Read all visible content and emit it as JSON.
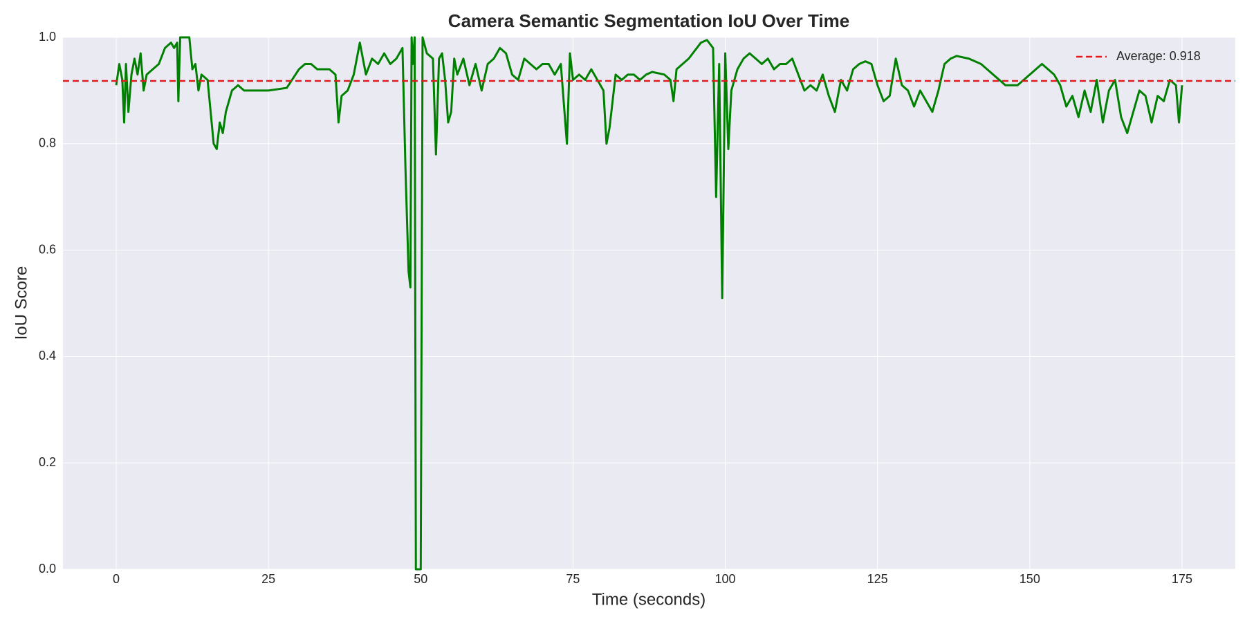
{
  "chart_data": {
    "type": "line",
    "title": "Camera Semantic Segmentation IoU Over Time",
    "x_label": "Time (seconds)",
    "y_label": "IoU Score",
    "xlim": [
      -8.75,
      183.75
    ],
    "xticks": [
      0,
      25,
      50,
      75,
      100,
      125,
      150,
      175
    ],
    "ylim": [
      0,
      1
    ],
    "yticks": [
      {
        "value": 0,
        "label": "0.0"
      },
      0.2,
      0.4,
      0.6,
      0.8,
      {
        "value": 1,
        "label": "1.0"
      }
    ],
    "grid": true,
    "legend": "upper right",
    "color": "#008000",
    "x": [
      0,
      0.5,
      1,
      1.3,
      1.6,
      2,
      2.5,
      3,
      3.5,
      4,
      4.5,
      5,
      6,
      7,
      8,
      9,
      9.5,
      10,
      10.2,
      10.5,
      12,
      12.5,
      13,
      13.5,
      14,
      15,
      15.5,
      16,
      16.5,
      17,
      17.5,
      18,
      19,
      20,
      21,
      22,
      25,
      28,
      30,
      31,
      32,
      33,
      35,
      36,
      36.5,
      37,
      38,
      39,
      40,
      41,
      42,
      43,
      44,
      45,
      46,
      47,
      47.5,
      48,
      48.3,
      48.5,
      48.7,
      49,
      49.2,
      50,
      50.3,
      51,
      52,
      52.5,
      53,
      53.5,
      54,
      54.5,
      55,
      55.5,
      56,
      57,
      58,
      59,
      60,
      61,
      62,
      63,
      64,
      65,
      66,
      67,
      68,
      69,
      70,
      71,
      72,
      73,
      74,
      74.5,
      75,
      76,
      77,
      78,
      79,
      80,
      80.5,
      81,
      82,
      83,
      84,
      85,
      86,
      87,
      88,
      90,
      91,
      91.5,
      92,
      94,
      96,
      97,
      98,
      98.5,
      99,
      99.5,
      100,
      100.5,
      101,
      102,
      103,
      104,
      105,
      106,
      107,
      108,
      109,
      110,
      111,
      112,
      113,
      114,
      115,
      116,
      117,
      118,
      119,
      120,
      121,
      122,
      123,
      124,
      125,
      126,
      127,
      128,
      129,
      130,
      131,
      132,
      133,
      134,
      135,
      136,
      137,
      138,
      140,
      142,
      144,
      145,
      146,
      148,
      149,
      150,
      151,
      152,
      153,
      154,
      155,
      156,
      157,
      158,
      159,
      160,
      161,
      162,
      163,
      164,
      165,
      166,
      167,
      168,
      169,
      170,
      171,
      172,
      173,
      174,
      174.5,
      175
    ],
    "values": [
      0.91,
      0.95,
      0.92,
      0.84,
      0.95,
      0.86,
      0.93,
      0.96,
      0.93,
      0.97,
      0.9,
      0.93,
      0.94,
      0.95,
      0.98,
      0.99,
      0.98,
      0.99,
      0.88,
      1.0,
      1.0,
      0.94,
      0.95,
      0.9,
      0.93,
      0.92,
      0.86,
      0.8,
      0.79,
      0.84,
      0.82,
      0.86,
      0.9,
      0.91,
      0.9,
      0.9,
      0.9,
      0.905,
      0.94,
      0.95,
      0.95,
      0.94,
      0.94,
      0.93,
      0.84,
      0.89,
      0.9,
      0.93,
      0.99,
      0.93,
      0.96,
      0.95,
      0.97,
      0.95,
      0.96,
      0.98,
      0.75,
      0.56,
      0.53,
      1.0,
      0.95,
      1.0,
      0.0,
      0.0,
      1.0,
      0.97,
      0.96,
      0.78,
      0.96,
      0.97,
      0.92,
      0.84,
      0.86,
      0.96,
      0.93,
      0.96,
      0.91,
      0.95,
      0.9,
      0.95,
      0.96,
      0.98,
      0.97,
      0.93,
      0.92,
      0.96,
      0.95,
      0.94,
      0.95,
      0.95,
      0.93,
      0.95,
      0.8,
      0.97,
      0.92,
      0.93,
      0.92,
      0.94,
      0.92,
      0.9,
      0.8,
      0.83,
      0.93,
      0.92,
      0.93,
      0.93,
      0.92,
      0.93,
      0.935,
      0.93,
      0.92,
      0.88,
      0.94,
      0.96,
      0.99,
      0.995,
      0.98,
      0.7,
      0.95,
      0.51,
      0.97,
      0.79,
      0.9,
      0.94,
      0.96,
      0.97,
      0.96,
      0.95,
      0.96,
      0.94,
      0.95,
      0.95,
      0.96,
      0.93,
      0.9,
      0.91,
      0.9,
      0.93,
      0.89,
      0.86,
      0.92,
      0.9,
      0.94,
      0.95,
      0.955,
      0.95,
      0.91,
      0.88,
      0.89,
      0.96,
      0.91,
      0.9,
      0.87,
      0.9,
      0.88,
      0.86,
      0.9,
      0.95,
      0.96,
      0.965,
      0.96,
      0.95,
      0.93,
      0.92,
      0.91,
      0.91,
      0.92,
      0.93,
      0.94,
      0.95,
      0.94,
      0.93,
      0.91,
      0.87,
      0.89,
      0.85,
      0.9,
      0.86,
      0.92,
      0.84,
      0.9,
      0.92,
      0.85,
      0.82,
      0.86,
      0.9,
      0.89,
      0.84,
      0.89,
      0.88,
      0.92,
      0.91,
      0.84,
      0.91
    ],
    "average": {
      "name": "Average: 0.918",
      "value": 0.918,
      "color": "#e31a1c"
    }
  }
}
